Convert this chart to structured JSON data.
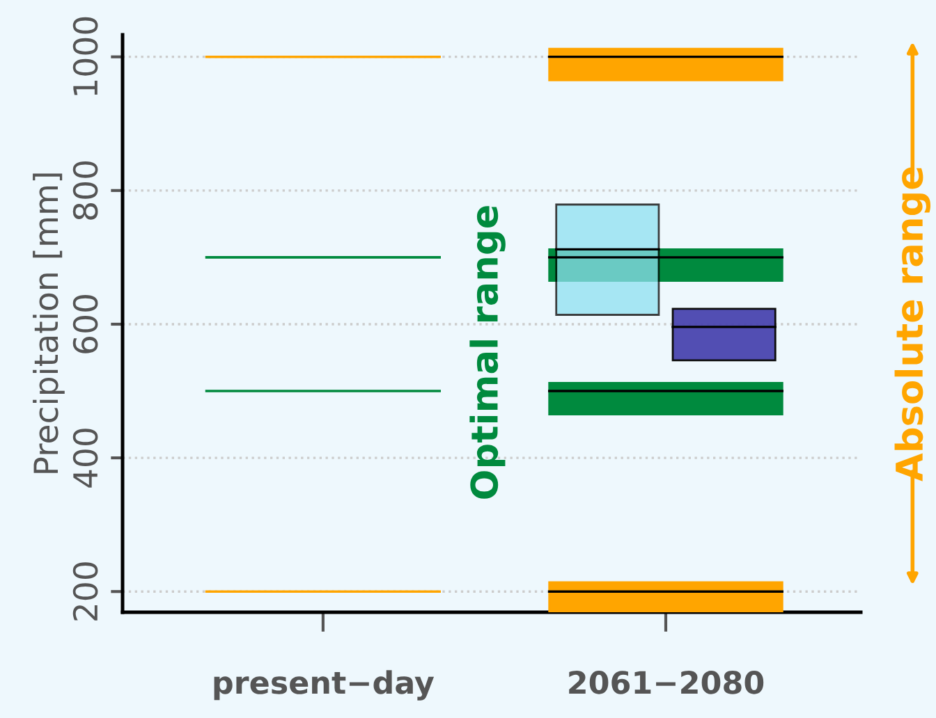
{
  "chart_data": {
    "type": "box",
    "ylabel": "Precipitation [mm]",
    "categories": [
      "present−day",
      "2061−2080"
    ],
    "series": [
      {
        "color": "#ffa500",
        "boxes": [
          {
            "low": 200,
            "q1": 200,
            "median": 200,
            "q3": 200,
            "high": 200
          },
          {
            "low": 170,
            "q1": 170,
            "median": 200,
            "q3": 214,
            "high": 214
          }
        ]
      },
      {
        "name": "Absolute range",
        "color": "#ffa500",
        "boxes": [
          {
            "low": 1000,
            "q1": 1000,
            "median": 1000,
            "q3": 1000,
            "high": 1000
          },
          {
            "low": 965,
            "q1": 965,
            "median": 1000,
            "q3": 1012,
            "high": 1012
          }
        ]
      },
      {
        "color": "#008a3e",
        "boxes": [
          {
            "low": 500,
            "q1": 500,
            "median": 500,
            "q3": 500,
            "high": 500
          },
          {
            "low": 465,
            "q1": 465,
            "median": 500,
            "q3": 512,
            "high": 512
          }
        ]
      },
      {
        "name": "Optimal range",
        "color": "#008a3e",
        "boxes": [
          {
            "low": 700,
            "q1": 700,
            "median": 700,
            "q3": 700,
            "high": 700
          },
          {
            "low": 665,
            "q1": 665,
            "median": 700,
            "q3": 712,
            "high": 712
          }
        ]
      },
      {
        "color": "#8ee0f0",
        "boxes": [
          null,
          {
            "low": 614,
            "q1": 614,
            "median": 712,
            "q3": 779,
            "high": 779
          }
        ]
      },
      {
        "color": "#4a45b0",
        "boxes": [
          null,
          {
            "low": 546,
            "q1": 546,
            "median": 596,
            "q3": 623,
            "high": 623
          }
        ]
      }
    ],
    "ylim": [
      169,
      1033
    ],
    "yticks": [
      200,
      400,
      600,
      800,
      1000
    ],
    "grid": "y",
    "legend": false
  }
}
